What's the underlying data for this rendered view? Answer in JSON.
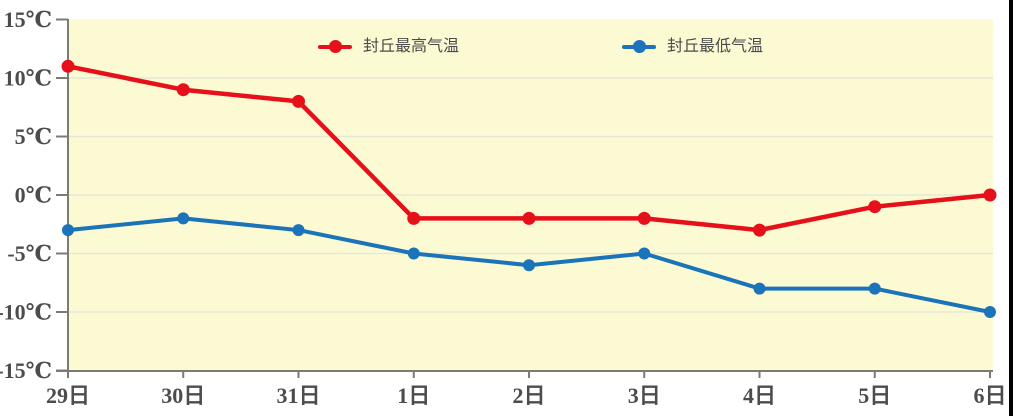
{
  "chart_data": {
    "type": "line",
    "title": "",
    "xlabel": "",
    "ylabel": "",
    "categories": [
      "29日",
      "30日",
      "31日",
      "1日",
      "2日",
      "3日",
      "4日",
      "5日",
      "6日"
    ],
    "y_tick_values": [
      15,
      10,
      5,
      0,
      -5,
      -10,
      -15
    ],
    "y_tick_labels": [
      "15℃",
      "10℃",
      "5℃",
      "0℃",
      "-5℃",
      "-10℃",
      "-15℃"
    ],
    "ylim": [
      -15,
      15
    ],
    "grid": true,
    "legend_position": "top-inside",
    "series": [
      {
        "name": "封丘最高气温",
        "color": "#e6101a",
        "values": [
          11,
          9,
          8,
          -2,
          -2,
          -2,
          -3,
          -1,
          0
        ]
      },
      {
        "name": "封丘最低气温",
        "color": "#1b73b9",
        "values": [
          -3,
          -2,
          -3,
          -5,
          -6,
          -5,
          -8,
          -8,
          -10
        ]
      }
    ],
    "colors": {
      "plot_background": "#fcfad2",
      "grid_line": "#e6e6da",
      "axis_line": "#7b7b73",
      "tick_label": "#4c4c4c",
      "page_background": "#ffffff",
      "right_border": "#000000"
    }
  }
}
